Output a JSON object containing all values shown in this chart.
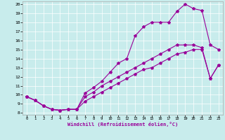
{
  "xlabel": "Windchill (Refroidissement éolien,°C)",
  "background_color": "#c8ecec",
  "line_color": "#990099",
  "grid_color": "#ffffff",
  "xlim": [
    -0.5,
    23.5
  ],
  "ylim": [
    7.8,
    20.3
  ],
  "xticks": [
    0,
    1,
    2,
    3,
    4,
    5,
    6,
    7,
    8,
    9,
    10,
    11,
    12,
    13,
    14,
    15,
    16,
    17,
    18,
    19,
    20,
    21,
    22,
    23
  ],
  "yticks": [
    8,
    9,
    10,
    11,
    12,
    13,
    14,
    15,
    16,
    17,
    18,
    19,
    20
  ],
  "line1_x": [
    0,
    1,
    2,
    3,
    4,
    5,
    6,
    7,
    8,
    9,
    10,
    11,
    12,
    13,
    14,
    15,
    16,
    17,
    18,
    19,
    20,
    21,
    22,
    23
  ],
  "line1_y": [
    9.8,
    9.4,
    8.8,
    8.4,
    8.3,
    8.4,
    8.4,
    10.2,
    10.8,
    11.5,
    12.5,
    13.5,
    14.0,
    16.5,
    17.5,
    18.0,
    18.0,
    18.0,
    19.2,
    20.0,
    19.5,
    19.3,
    15.5,
    15.0
  ],
  "line2_x": [
    0,
    1,
    2,
    3,
    4,
    5,
    6,
    7,
    8,
    9,
    10,
    11,
    12,
    13,
    14,
    15,
    16,
    17,
    18,
    19,
    20,
    21,
    22,
    23
  ],
  "line2_y": [
    9.8,
    9.4,
    8.8,
    8.4,
    8.3,
    8.4,
    8.4,
    9.8,
    10.3,
    11.0,
    11.5,
    12.0,
    12.5,
    13.0,
    13.5,
    14.0,
    14.5,
    15.0,
    15.5,
    15.5,
    15.5,
    15.2,
    11.8,
    13.3
  ],
  "line3_x": [
    0,
    1,
    2,
    3,
    4,
    5,
    6,
    7,
    8,
    9,
    10,
    11,
    12,
    13,
    14,
    15,
    16,
    17,
    18,
    19,
    20,
    21,
    22,
    23
  ],
  "line3_y": [
    9.8,
    9.4,
    8.8,
    8.4,
    8.3,
    8.4,
    8.4,
    9.3,
    9.8,
    10.3,
    10.8,
    11.3,
    11.8,
    12.3,
    12.8,
    13.0,
    13.5,
    14.0,
    14.5,
    14.7,
    15.0,
    15.0,
    11.8,
    13.3
  ]
}
